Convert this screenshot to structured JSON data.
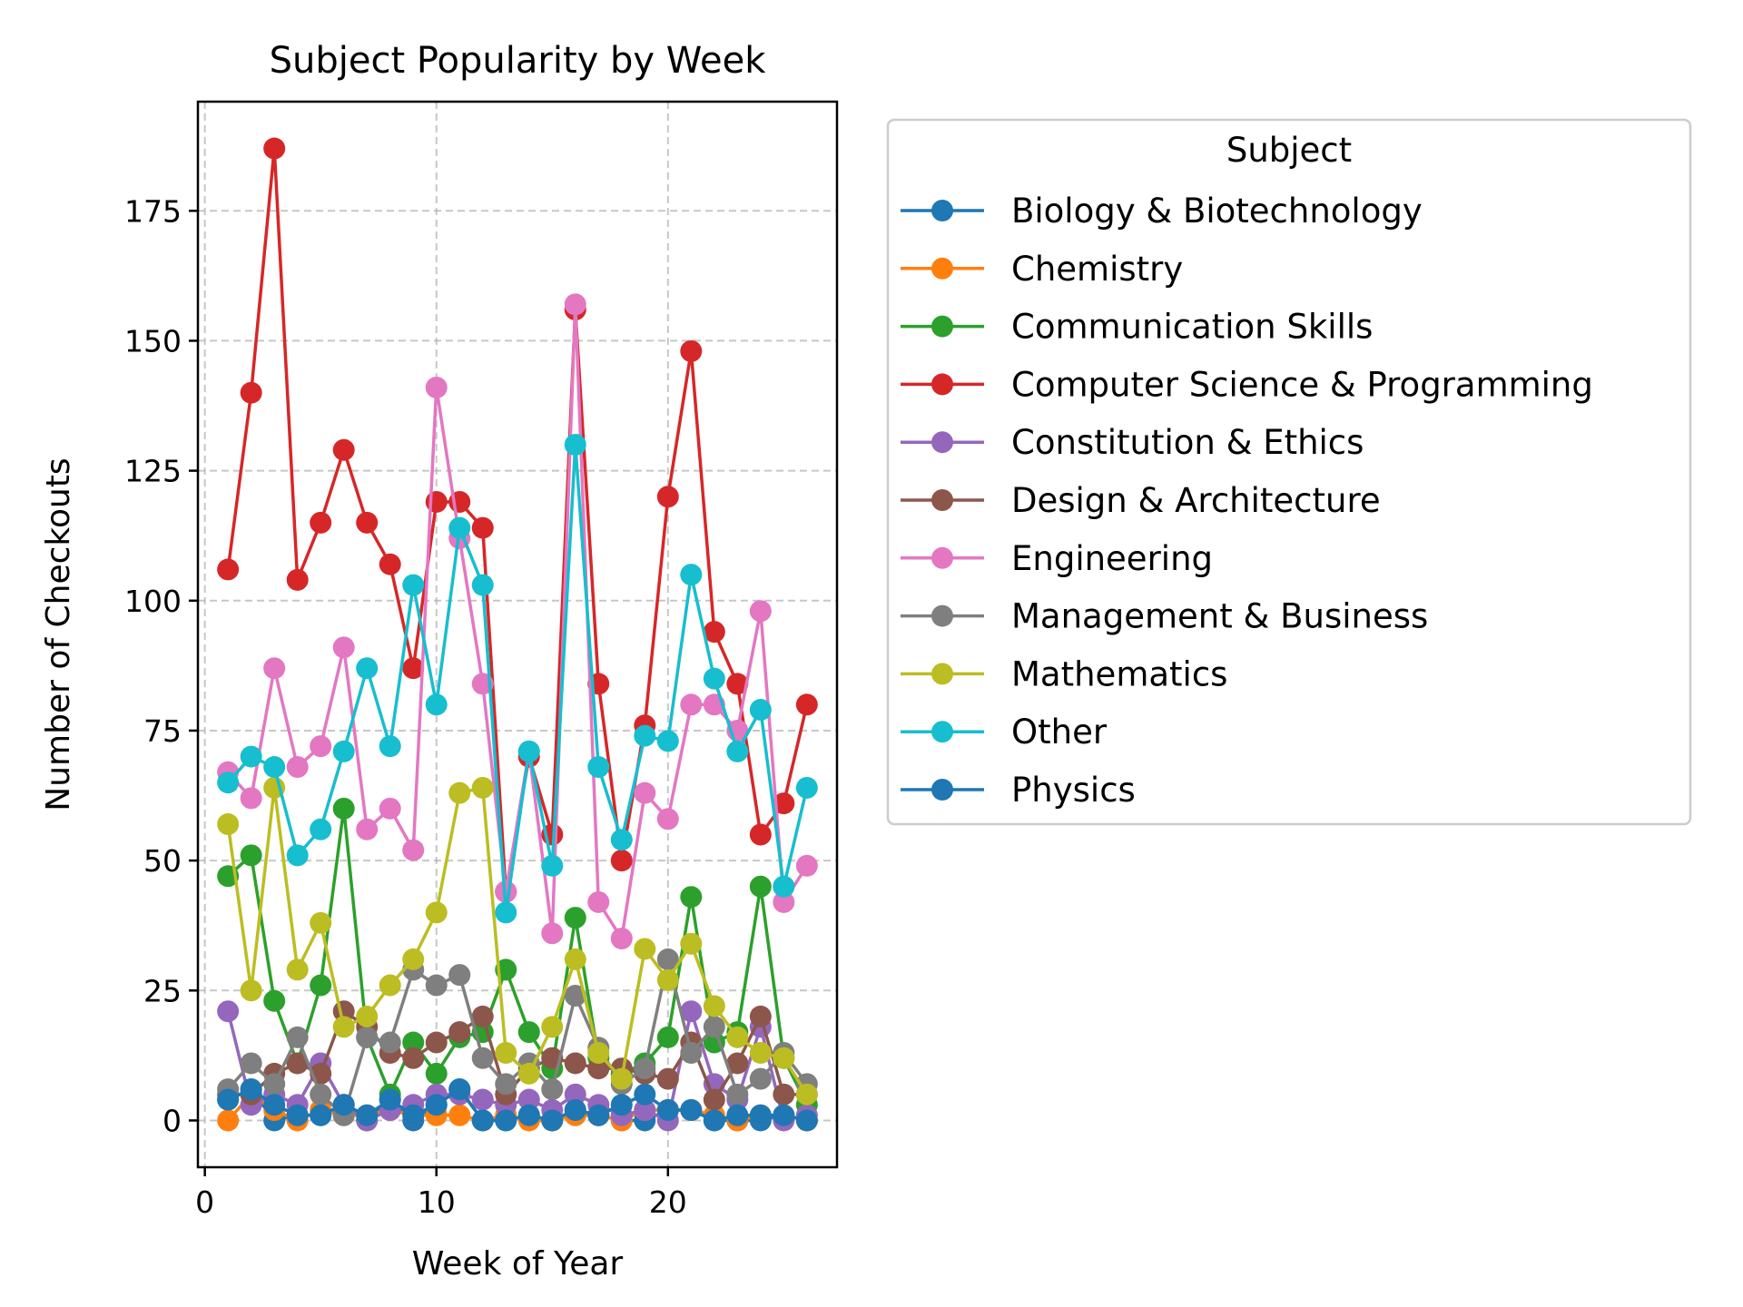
{
  "chart_data": {
    "type": "line",
    "title": "Subject Popularity by Week",
    "xlabel": "Week of Year",
    "ylabel": "Number of Checkouts",
    "xlim": [
      -0.3,
      27.3
    ],
    "ylim": [
      -9,
      196
    ],
    "xticks": [
      0,
      10,
      20
    ],
    "yticks": [
      0,
      25,
      50,
      75,
      100,
      125,
      150,
      175
    ],
    "grid": true,
    "legend": {
      "title": "Subject",
      "placement": "outside-right-top"
    },
    "x": [
      1,
      2,
      3,
      4,
      5,
      6,
      7,
      8,
      9,
      10,
      11,
      12,
      13,
      14,
      15,
      16,
      17,
      18,
      19,
      20,
      21,
      22,
      23,
      24,
      25,
      26
    ],
    "series": [
      {
        "name": "Biology & Biotechnology",
        "color": "#1f77b4",
        "values": [
          4,
          6,
          0,
          1,
          1,
          3,
          0,
          4,
          0,
          3,
          6,
          0,
          0,
          1,
          0,
          2,
          1,
          0,
          0,
          2,
          2,
          0,
          0,
          0,
          1,
          0
        ]
      },
      {
        "name": "Chemistry",
        "color": "#ff7f0e",
        "values": [
          0,
          5,
          2,
          0,
          2,
          1,
          1,
          2,
          1,
          1,
          1,
          0,
          1,
          0,
          0,
          1,
          1,
          0,
          2,
          2,
          2,
          1,
          0,
          1,
          1,
          0
        ]
      },
      {
        "name": "Communication Skills",
        "color": "#2ca02c",
        "values": [
          47,
          51,
          23,
          11,
          26,
          60,
          16,
          5,
          15,
          9,
          16,
          17,
          29,
          17,
          10,
          39,
          12,
          9,
          11,
          16,
          43,
          15,
          17,
          45,
          12,
          3
        ]
      },
      {
        "name": "Computer Science & Programming",
        "color": "#d62728",
        "values": [
          106,
          140,
          187,
          104,
          115,
          129,
          115,
          107,
          87,
          119,
          119,
          114,
          44,
          70,
          55,
          156,
          84,
          50,
          76,
          120,
          148,
          94,
          84,
          55,
          61,
          80
        ]
      },
      {
        "name": "Constitution & Ethics",
        "color": "#9467bd",
        "values": [
          21,
          3,
          5,
          3,
          11,
          3,
          0,
          2,
          3,
          5,
          5,
          4,
          3,
          4,
          2,
          5,
          3,
          1,
          2,
          0,
          21,
          7,
          4,
          18,
          0,
          1
        ]
      },
      {
        "name": "Design & Architecture",
        "color": "#8c564b",
        "values": [
          5,
          5,
          9,
          11,
          9,
          21,
          18,
          13,
          12,
          15,
          17,
          20,
          5,
          10,
          12,
          11,
          10,
          10,
          9,
          8,
          15,
          4,
          11,
          20,
          5,
          5
        ]
      },
      {
        "name": "Engineering",
        "color": "#e377c2",
        "values": [
          67,
          62,
          87,
          68,
          72,
          91,
          56,
          60,
          52,
          141,
          112,
          84,
          44,
          71,
          36,
          157,
          42,
          35,
          63,
          58,
          80,
          80,
          75,
          98,
          42,
          49
        ]
      },
      {
        "name": "Management & Business",
        "color": "#7f7f7f",
        "values": [
          6,
          11,
          7,
          16,
          5,
          1,
          16,
          15,
          29,
          26,
          28,
          12,
          7,
          11,
          6,
          24,
          14,
          7,
          10,
          31,
          13,
          18,
          5,
          8,
          13,
          7
        ]
      },
      {
        "name": "Mathematics",
        "color": "#bcbd22",
        "values": [
          57,
          25,
          64,
          29,
          38,
          18,
          20,
          26,
          31,
          40,
          63,
          64,
          13,
          9,
          18,
          31,
          13,
          8,
          33,
          27,
          34,
          22,
          16,
          13,
          12,
          5
        ]
      },
      {
        "name": "Other",
        "color": "#17becf",
        "values": [
          65,
          70,
          68,
          51,
          56,
          71,
          87,
          72,
          103,
          80,
          114,
          103,
          40,
          71,
          49,
          130,
          68,
          54,
          74,
          73,
          105,
          85,
          71,
          79,
          45,
          64
        ]
      },
      {
        "name": "Physics",
        "color": "#1f77b4",
        "values": [
          4,
          6,
          3,
          1,
          1,
          3,
          1,
          4,
          1,
          3,
          6,
          0,
          0,
          1,
          0,
          2,
          1,
          3,
          5,
          2,
          2,
          0,
          1,
          1,
          1,
          0
        ]
      }
    ]
  }
}
